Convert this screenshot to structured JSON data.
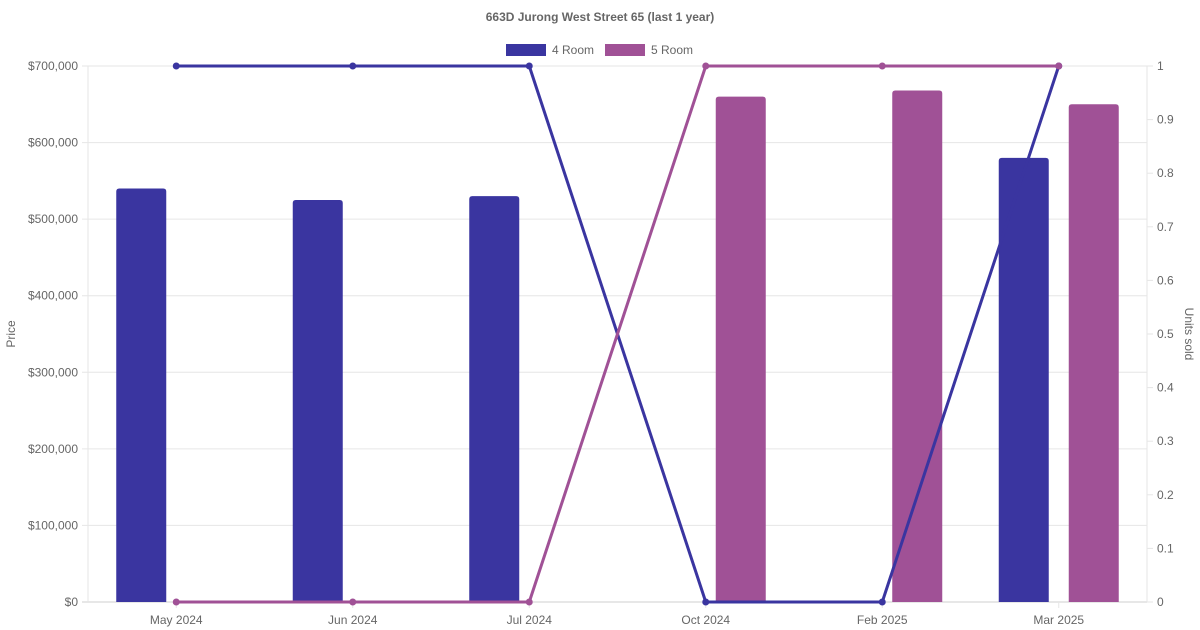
{
  "chart_data": {
    "type": "bar",
    "title": "663D Jurong West Street 65 (last 1 year)",
    "categories": [
      "May 2024",
      "Jun 2024",
      "Jul 2024",
      "Oct 2024",
      "Feb 2025",
      "Mar 2025"
    ],
    "y_left": {
      "label": "Price",
      "ylim": [
        0,
        700000
      ],
      "ticks": [
        "$0",
        "$100,000",
        "$200,000",
        "$300,000",
        "$400,000",
        "$500,000",
        "$600,000",
        "$700,000"
      ]
    },
    "y_right": {
      "label": "Units sold",
      "ylim": [
        0,
        1
      ],
      "ticks": [
        "0",
        "0.1",
        "0.2",
        "0.3",
        "0.4",
        "0.5",
        "0.6",
        "0.7",
        "0.8",
        "0.9",
        "1"
      ]
    },
    "grid": true,
    "legend_position": "top-center",
    "series": [
      {
        "name": "4 Room",
        "color": "#3a35a0",
        "price": [
          540000,
          525000,
          530000,
          null,
          null,
          580000
        ],
        "units_sold": [
          1,
          1,
          1,
          0,
          0,
          1
        ]
      },
      {
        "name": "5 Room",
        "color": "#a05196",
        "price": [
          null,
          null,
          null,
          660000,
          668000,
          650000
        ],
        "units_sold": [
          0,
          0,
          0,
          1,
          1,
          1
        ]
      }
    ]
  }
}
